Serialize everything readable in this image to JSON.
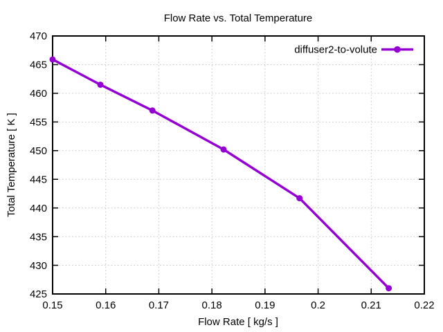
{
  "chart_data": {
    "type": "line",
    "title": "Flow Rate vs. Total Temperature",
    "xlabel": "Flow Rate [ kg/s ]",
    "ylabel": "Total Temperature [ K ]",
    "xlim": [
      0.15,
      0.22
    ],
    "ylim": [
      425,
      470
    ],
    "grid": true,
    "legend_position": "top-right-inside",
    "background_color": "#ffffff",
    "axis_color": "#000000",
    "grid_color": "#c2c2c2",
    "text_color": "#000000",
    "xticks": {
      "values": [
        0.15,
        0.16,
        0.17,
        0.18,
        0.19,
        0.2,
        0.21,
        0.22
      ],
      "labels": [
        "0.15",
        "0.16",
        "0.17",
        "0.18",
        "0.19",
        "0.2",
        "0.21",
        "0.22"
      ]
    },
    "yticks": {
      "values": [
        425,
        430,
        435,
        440,
        445,
        450,
        455,
        460,
        465,
        470
      ],
      "labels": [
        "425",
        "430",
        "435",
        "440",
        "445",
        "450",
        "455",
        "460",
        "465",
        "470"
      ]
    },
    "series": [
      {
        "name": "diffuser2-to-volute",
        "color": "#9400d3",
        "marker": "filled-circle",
        "points": [
          {
            "x": 0.15,
            "y": 465.9
          },
          {
            "x": 0.159,
            "y": 461.5
          },
          {
            "x": 0.1688,
            "y": 457.0
          },
          {
            "x": 0.1822,
            "y": 450.2
          },
          {
            "x": 0.1965,
            "y": 441.7
          },
          {
            "x": 0.2133,
            "y": 426.0
          }
        ]
      }
    ]
  }
}
